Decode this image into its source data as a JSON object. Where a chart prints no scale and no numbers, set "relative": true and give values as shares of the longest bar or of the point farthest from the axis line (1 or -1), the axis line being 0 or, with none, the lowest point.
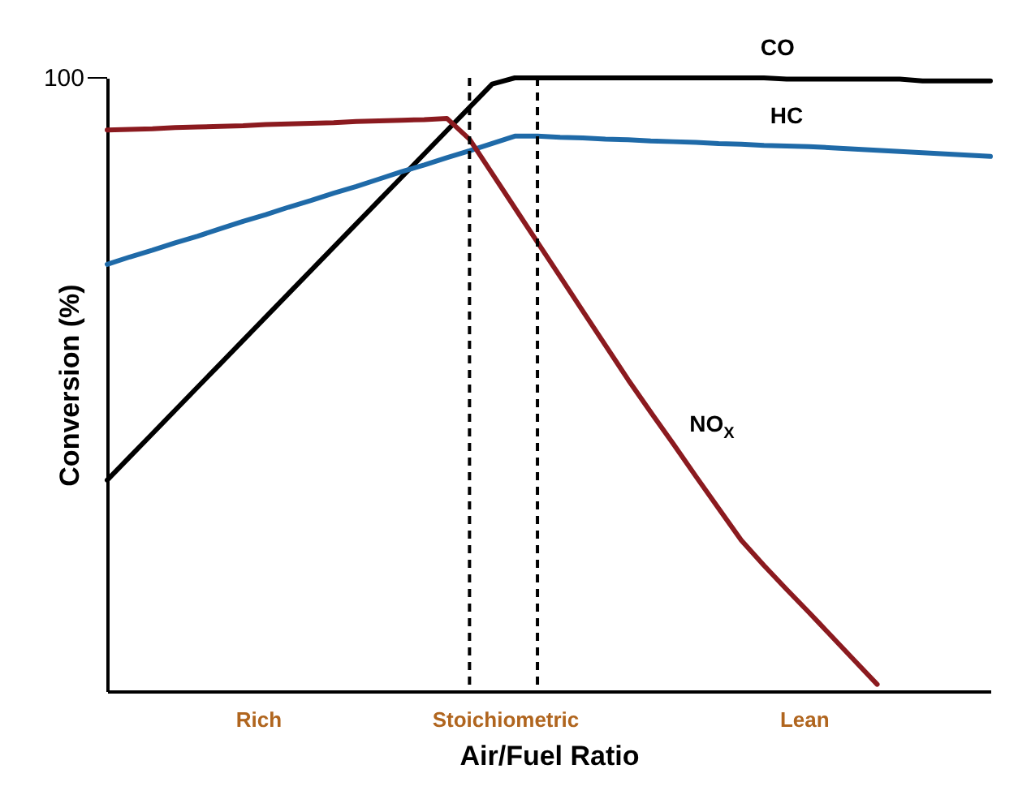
{
  "chart_data": {
    "type": "line",
    "xlabel": "Air/Fuel Ratio",
    "ylabel": "Conversion (%)",
    "relative": true,
    "categories": [
      null,
      null,
      null,
      null,
      null,
      null,
      null,
      null,
      null,
      null,
      null,
      null,
      null,
      null,
      null,
      null,
      null,
      null,
      null,
      null,
      null,
      null,
      null,
      null,
      null,
      null,
      null,
      null,
      null,
      null,
      null,
      null,
      null,
      null,
      null,
      null,
      null,
      null,
      null,
      null
    ],
    "legend": false,
    "marker": "none",
    "line_style": "solid",
    "series": [
      {
        "name": "CO",
        "color": "#000000",
        "values": [
          0.344,
          0.382,
          0.42,
          0.458,
          0.496,
          0.534,
          0.572,
          0.61,
          0.648,
          0.686,
          0.724,
          0.762,
          0.8,
          0.838,
          0.876,
          0.914,
          0.952,
          0.99,
          1,
          1,
          1,
          1,
          1,
          1,
          1,
          1,
          1,
          1,
          1,
          1,
          0.998,
          0.998,
          0.998,
          0.998,
          0.998,
          0.998,
          0.995,
          0.995,
          0.995,
          0.995
        ]
      },
      {
        "name": "HC",
        "color": "#1f6aa8",
        "values": [
          0.696,
          0.708,
          0.719,
          0.731,
          0.742,
          0.754,
          0.766,
          0.777,
          0.789,
          0.8,
          0.812,
          0.823,
          0.835,
          0.847,
          0.858,
          0.87,
          0.881,
          0.893,
          0.905,
          0.905,
          0.903,
          0.902,
          0.9,
          0.899,
          0.897,
          0.896,
          0.895,
          0.893,
          0.892,
          0.89,
          0.889,
          0.888,
          0.886,
          0.884,
          0.882,
          0.88,
          0.878,
          0.876,
          0.874,
          0.872
        ]
      },
      {
        "name": "NO$_{X}$",
        "color": "#8b1a1f",
        "values": [
          0.915,
          0.916,
          0.917,
          0.919,
          0.92,
          0.921,
          0.922,
          0.924,
          0.925,
          0.926,
          0.927,
          0.929,
          0.93,
          0.931,
          0.932,
          0.934,
          0.9,
          0.844,
          0.788,
          0.732,
          0.676,
          0.62,
          0.564,
          0.508,
          0.455,
          0.403,
          0.35,
          0.298,
          0.246,
          0.205,
          0.166,
          0.128,
          0.089,
          0.05,
          0.011,
          null,
          null,
          null,
          null,
          null
        ]
      }
    ],
    "annotations": [
      "100",
      "Rich",
      "Stoichiometric",
      "Lean"
    ]
  }
}
